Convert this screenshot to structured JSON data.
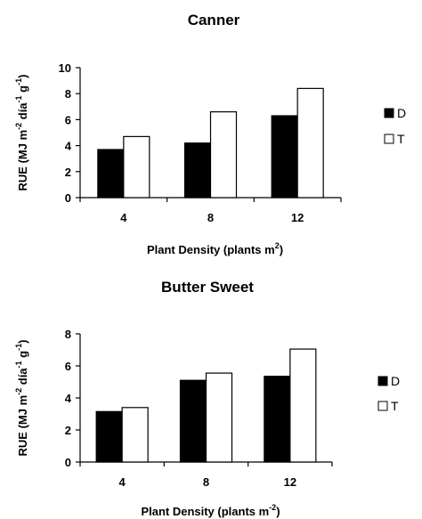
{
  "chart_data": [
    {
      "type": "bar",
      "title": "Canner",
      "xlabel": "Plant Density (plants m",
      "xlabel_sup": "2",
      "xlabel_end": ")",
      "ylabel_parts": [
        {
          "t": "RUE (MJ m",
          "sup": false
        },
        {
          "t": "-2",
          "sup": true
        },
        {
          "t": " día",
          "sup": false
        },
        {
          "t": "-1",
          "sup": true
        },
        {
          "t": " g",
          "sup": false
        },
        {
          "t": "-1",
          "sup": true
        },
        {
          "t": ")",
          "sup": false
        }
      ],
      "categories": [
        "4",
        "8",
        "12"
      ],
      "ylim": [
        0,
        10
      ],
      "yticks": [
        "0",
        "2",
        "4",
        "6",
        "8",
        "10"
      ],
      "series": [
        {
          "name": "D",
          "color": "#000000",
          "values": [
            3.7,
            4.2,
            6.3
          ]
        },
        {
          "name": "T",
          "color": "#ffffff",
          "values": [
            4.7,
            6.6,
            8.4
          ]
        }
      ],
      "legend": "right",
      "grid": false
    },
    {
      "type": "bar",
      "title": "Butter Sweet",
      "xlabel": "Plant Density (plants m",
      "xlabel_sup": "-2",
      "xlabel_end": ")",
      "ylabel_parts": [
        {
          "t": "RUE (MJ m",
          "sup": false
        },
        {
          "t": "-2",
          "sup": true
        },
        {
          "t": " día",
          "sup": false
        },
        {
          "t": "-1",
          "sup": true
        },
        {
          "t": " g",
          "sup": false
        },
        {
          "t": "-1",
          "sup": true
        },
        {
          "t": ")",
          "sup": false
        }
      ],
      "categories": [
        "4",
        "8",
        "12"
      ],
      "ylim": [
        0,
        8
      ],
      "yticks": [
        "0",
        "2",
        "4",
        "6",
        "8"
      ],
      "series": [
        {
          "name": "D",
          "color": "#000000",
          "values": [
            3.15,
            5.1,
            5.35
          ]
        },
        {
          "name": "T",
          "color": "#ffffff",
          "values": [
            3.4,
            5.55,
            7.05
          ]
        }
      ],
      "legend": "right",
      "grid": false
    }
  ]
}
